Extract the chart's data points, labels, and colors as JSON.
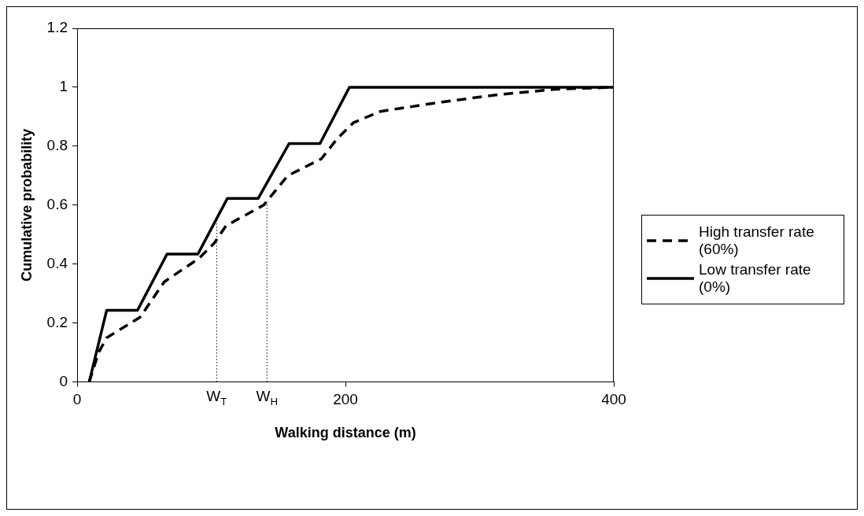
{
  "chart_data": {
    "type": "line",
    "xlabel": "Walking distance (m)",
    "ylabel": "Cumulative probability",
    "xlim": [
      0,
      400
    ],
    "xticks": [
      0,
      200,
      400
    ],
    "ylim": [
      0,
      1.2
    ],
    "yticks": [
      0,
      0.2,
      0.4,
      0.6,
      0.8,
      1,
      1.2
    ],
    "grid": false,
    "legend": "right",
    "marker": "none",
    "series": [
      {
        "name": "High transfer rate (60%)",
        "color": "#000000",
        "line_style": "dashed",
        "x": [
          9,
          16,
          22,
          47,
          65,
          91,
          102,
          111,
          139,
          157,
          182,
          194,
          206,
          226,
          272,
          314,
          356,
          400
        ],
        "values": [
          0,
          0.1,
          0.15,
          0.22,
          0.34,
          0.42,
          0.47,
          0.53,
          0.6,
          0.7,
          0.757,
          0.826,
          0.88,
          0.918,
          0.95,
          0.975,
          0.993,
          1
        ]
      },
      {
        "name": "Low transfer rate (0%)",
        "color": "#000000",
        "line_style": "solid",
        "x": [
          9,
          22,
          45,
          67,
          90,
          112,
          135,
          158,
          181,
          203,
          400
        ],
        "values": [
          0,
          0.243,
          0.243,
          0.434,
          0.434,
          0.623,
          0.623,
          0.809,
          0.809,
          1,
          1
        ]
      },
      {
        "color": "#000000",
        "line_style": "dotted",
        "x": [
          104,
          104
        ],
        "values": [
          0,
          0.563
        ]
      },
      {
        "color": "#000000",
        "line_style": "dotted",
        "x": [
          141.5,
          141.5
        ],
        "values": [
          0,
          0.615
        ]
      }
    ],
    "annotations": [
      {
        "text": "W$_{T}$",
        "x": 104,
        "y": 0
      },
      {
        "text": "W$_{H}$",
        "x": 141.5,
        "y": 0
      }
    ]
  }
}
